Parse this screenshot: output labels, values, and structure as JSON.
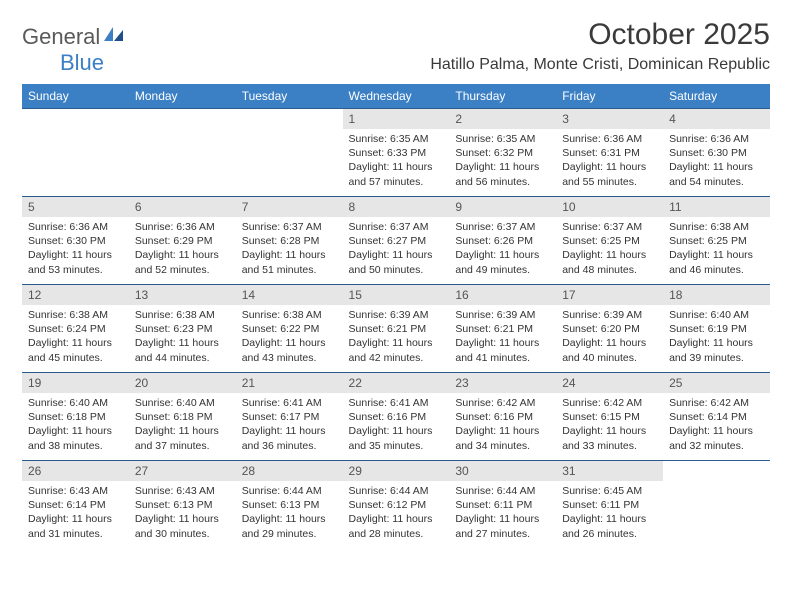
{
  "logo": {
    "text1": "General",
    "text2": "Blue"
  },
  "title": "October 2025",
  "location": "Hatillo Palma, Monte Cristi, Dominican Republic",
  "colors": {
    "header_bg": "#3b7fc4",
    "header_text": "#ffffff",
    "daynum_bg": "#e6e6e6",
    "daynum_text": "#555555",
    "rule": "#2a5a8e",
    "body_text": "#333333",
    "logo_gray": "#5a5a5a",
    "logo_blue": "#3b7fc4",
    "page_bg": "#ffffff"
  },
  "day_headers": [
    "Sunday",
    "Monday",
    "Tuesday",
    "Wednesday",
    "Thursday",
    "Friday",
    "Saturday"
  ],
  "weeks": [
    [
      null,
      null,
      null,
      {
        "n": "1",
        "sunrise": "6:35 AM",
        "sunset": "6:33 PM",
        "daylight": "11 hours and 57 minutes."
      },
      {
        "n": "2",
        "sunrise": "6:35 AM",
        "sunset": "6:32 PM",
        "daylight": "11 hours and 56 minutes."
      },
      {
        "n": "3",
        "sunrise": "6:36 AM",
        "sunset": "6:31 PM",
        "daylight": "11 hours and 55 minutes."
      },
      {
        "n": "4",
        "sunrise": "6:36 AM",
        "sunset": "6:30 PM",
        "daylight": "11 hours and 54 minutes."
      }
    ],
    [
      {
        "n": "5",
        "sunrise": "6:36 AM",
        "sunset": "6:30 PM",
        "daylight": "11 hours and 53 minutes."
      },
      {
        "n": "6",
        "sunrise": "6:36 AM",
        "sunset": "6:29 PM",
        "daylight": "11 hours and 52 minutes."
      },
      {
        "n": "7",
        "sunrise": "6:37 AM",
        "sunset": "6:28 PM",
        "daylight": "11 hours and 51 minutes."
      },
      {
        "n": "8",
        "sunrise": "6:37 AM",
        "sunset": "6:27 PM",
        "daylight": "11 hours and 50 minutes."
      },
      {
        "n": "9",
        "sunrise": "6:37 AM",
        "sunset": "6:26 PM",
        "daylight": "11 hours and 49 minutes."
      },
      {
        "n": "10",
        "sunrise": "6:37 AM",
        "sunset": "6:25 PM",
        "daylight": "11 hours and 48 minutes."
      },
      {
        "n": "11",
        "sunrise": "6:38 AM",
        "sunset": "6:25 PM",
        "daylight": "11 hours and 46 minutes."
      }
    ],
    [
      {
        "n": "12",
        "sunrise": "6:38 AM",
        "sunset": "6:24 PM",
        "daylight": "11 hours and 45 minutes."
      },
      {
        "n": "13",
        "sunrise": "6:38 AM",
        "sunset": "6:23 PM",
        "daylight": "11 hours and 44 minutes."
      },
      {
        "n": "14",
        "sunrise": "6:38 AM",
        "sunset": "6:22 PM",
        "daylight": "11 hours and 43 minutes."
      },
      {
        "n": "15",
        "sunrise": "6:39 AM",
        "sunset": "6:21 PM",
        "daylight": "11 hours and 42 minutes."
      },
      {
        "n": "16",
        "sunrise": "6:39 AM",
        "sunset": "6:21 PM",
        "daylight": "11 hours and 41 minutes."
      },
      {
        "n": "17",
        "sunrise": "6:39 AM",
        "sunset": "6:20 PM",
        "daylight": "11 hours and 40 minutes."
      },
      {
        "n": "18",
        "sunrise": "6:40 AM",
        "sunset": "6:19 PM",
        "daylight": "11 hours and 39 minutes."
      }
    ],
    [
      {
        "n": "19",
        "sunrise": "6:40 AM",
        "sunset": "6:18 PM",
        "daylight": "11 hours and 38 minutes."
      },
      {
        "n": "20",
        "sunrise": "6:40 AM",
        "sunset": "6:18 PM",
        "daylight": "11 hours and 37 minutes."
      },
      {
        "n": "21",
        "sunrise": "6:41 AM",
        "sunset": "6:17 PM",
        "daylight": "11 hours and 36 minutes."
      },
      {
        "n": "22",
        "sunrise": "6:41 AM",
        "sunset": "6:16 PM",
        "daylight": "11 hours and 35 minutes."
      },
      {
        "n": "23",
        "sunrise": "6:42 AM",
        "sunset": "6:16 PM",
        "daylight": "11 hours and 34 minutes."
      },
      {
        "n": "24",
        "sunrise": "6:42 AM",
        "sunset": "6:15 PM",
        "daylight": "11 hours and 33 minutes."
      },
      {
        "n": "25",
        "sunrise": "6:42 AM",
        "sunset": "6:14 PM",
        "daylight": "11 hours and 32 minutes."
      }
    ],
    [
      {
        "n": "26",
        "sunrise": "6:43 AM",
        "sunset": "6:14 PM",
        "daylight": "11 hours and 31 minutes."
      },
      {
        "n": "27",
        "sunrise": "6:43 AM",
        "sunset": "6:13 PM",
        "daylight": "11 hours and 30 minutes."
      },
      {
        "n": "28",
        "sunrise": "6:44 AM",
        "sunset": "6:13 PM",
        "daylight": "11 hours and 29 minutes."
      },
      {
        "n": "29",
        "sunrise": "6:44 AM",
        "sunset": "6:12 PM",
        "daylight": "11 hours and 28 minutes."
      },
      {
        "n": "30",
        "sunrise": "6:44 AM",
        "sunset": "6:11 PM",
        "daylight": "11 hours and 27 minutes."
      },
      {
        "n": "31",
        "sunrise": "6:45 AM",
        "sunset": "6:11 PM",
        "daylight": "11 hours and 26 minutes."
      },
      null
    ]
  ],
  "labels": {
    "sunrise": "Sunrise:",
    "sunset": "Sunset:",
    "daylight": "Daylight:"
  }
}
